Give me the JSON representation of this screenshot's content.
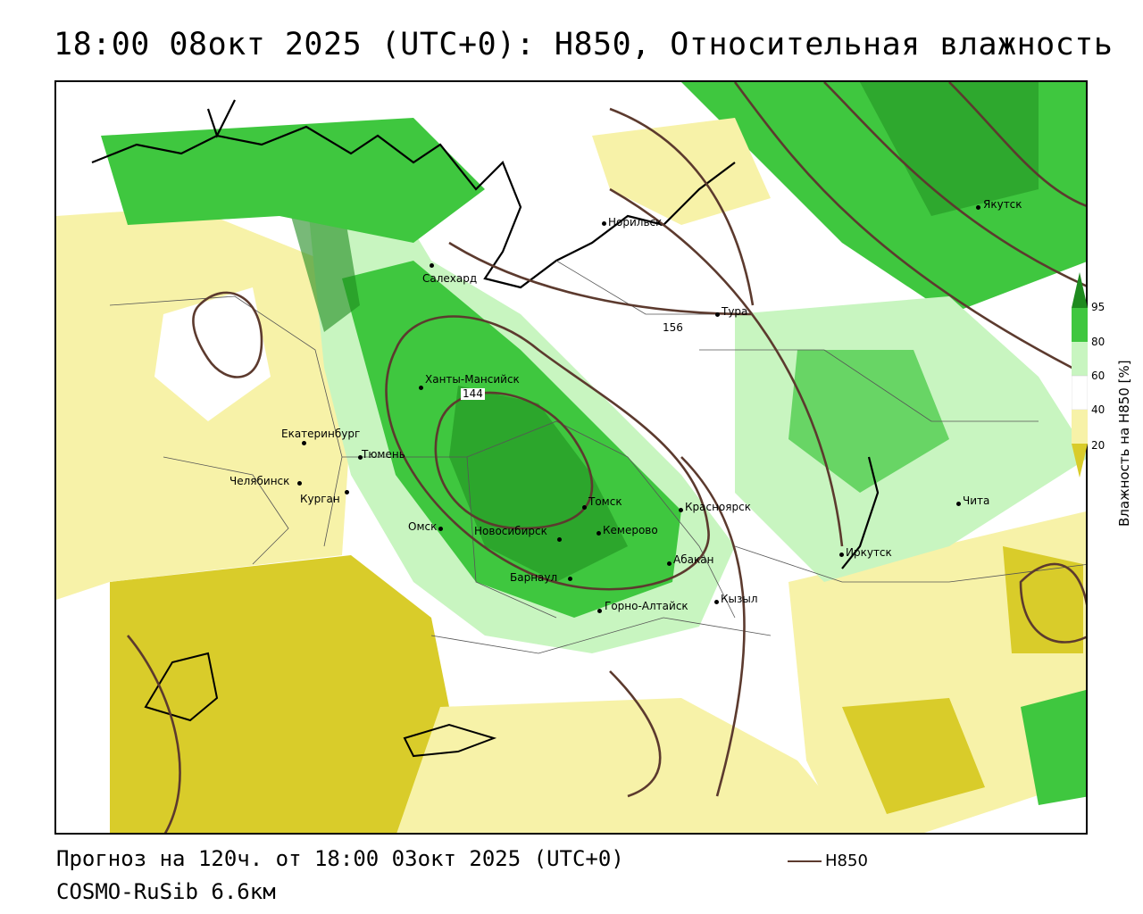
{
  "title": "18:00 08окт 2025 (UTC+0): H850, Относительная влажность",
  "footer": {
    "forecast": "Прогноз на 120ч. от 18:00 03окт 2025 (UTC+0)",
    "model": "COSMO-RuSib 6.6км",
    "legend_label": "H850",
    "legend_color": "#5c3a2e"
  },
  "colorbar": {
    "title": "Влажность на H850 [%]",
    "ticks": [
      "95",
      "80",
      "60",
      "40",
      "20"
    ],
    "colors": {
      "very_humid": "#1e8a1e",
      "humid": "#3fc73f",
      "moderate": "#c8f5c0",
      "neutral": "#ffffff",
      "dry": "#f7f2a8",
      "very_dry": "#d9cc2a"
    }
  },
  "contour_labels": [
    "144",
    "156"
  ],
  "cities": [
    {
      "name": "Норильск"
    },
    {
      "name": "Якутск"
    },
    {
      "name": "Салехард"
    },
    {
      "name": "Тура"
    },
    {
      "name": "Ханты-Мансийск"
    },
    {
      "name": "Екатеринбург"
    },
    {
      "name": "Тюмень"
    },
    {
      "name": "Челябинск"
    },
    {
      "name": "Курган"
    },
    {
      "name": "Омск"
    },
    {
      "name": "Новосибирск"
    },
    {
      "name": "Томск"
    },
    {
      "name": "Кемерово"
    },
    {
      "name": "Красноярск"
    },
    {
      "name": "Абакан"
    },
    {
      "name": "Барнаул"
    },
    {
      "name": "Горно-Алтайск"
    },
    {
      "name": "Кызыл"
    },
    {
      "name": "Иркутск"
    },
    {
      "name": "Чита"
    }
  ]
}
